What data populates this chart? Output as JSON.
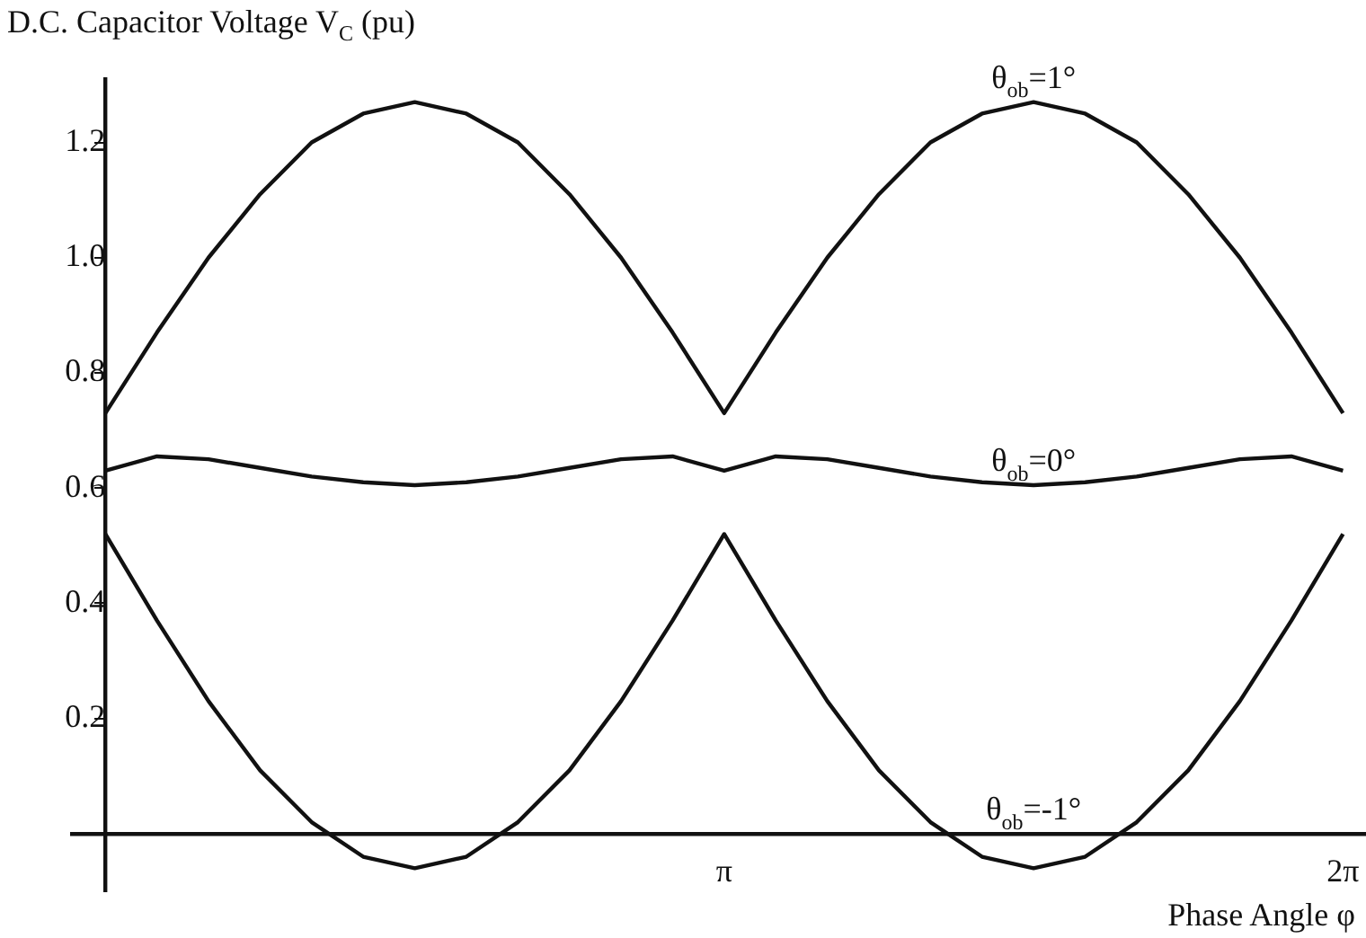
{
  "chart_data": {
    "type": "line",
    "ylabel": "D.C. Capacitor Voltage V$_{C}$ (pu)",
    "xlabel": "Phase Angle φ",
    "x": [
      0,
      0.2618,
      0.5236,
      0.7854,
      1.0472,
      1.309,
      1.5708,
      1.8326,
      2.0944,
      2.3562,
      2.618,
      2.8798,
      3.1416,
      3.4034,
      3.6652,
      3.927,
      4.1888,
      4.4506,
      4.7124,
      4.9742,
      5.236,
      5.4978,
      5.7596,
      6.0214,
      6.2832
    ],
    "series": [
      {
        "name": "θ$_{ob}$=1°",
        "color": "#111111",
        "values": [
          0.73,
          0.87,
          1.0,
          1.11,
          1.2,
          1.25,
          1.27,
          1.25,
          1.2,
          1.11,
          1.0,
          0.87,
          0.73,
          0.87,
          1.0,
          1.11,
          1.2,
          1.25,
          1.27,
          1.25,
          1.2,
          1.11,
          1.0,
          0.87,
          0.73
        ]
      },
      {
        "name": "θ$_{ob}$=0°",
        "color": "#111111",
        "values": [
          0.63,
          0.655,
          0.65,
          0.635,
          0.62,
          0.61,
          0.605,
          0.61,
          0.62,
          0.635,
          0.65,
          0.655,
          0.63,
          0.655,
          0.65,
          0.635,
          0.62,
          0.61,
          0.605,
          0.61,
          0.62,
          0.635,
          0.65,
          0.655,
          0.63
        ]
      },
      {
        "name": "θ$_{ob}$=-1°",
        "color": "#111111",
        "values": [
          0.52,
          0.37,
          0.23,
          0.11,
          0.02,
          -0.04,
          -0.06,
          -0.04,
          0.02,
          0.11,
          0.23,
          0.37,
          0.52,
          0.37,
          0.23,
          0.11,
          0.02,
          -0.04,
          -0.06,
          -0.04,
          0.02,
          0.11,
          0.23,
          0.37,
          0.52
        ]
      }
    ],
    "xlim": [
      -0.17,
      6.4
    ],
    "xticks": [
      {
        "value": 3.1416,
        "label": "π"
      },
      {
        "value": 6.2832,
        "label": "2π"
      }
    ],
    "ylim": [
      -0.1,
      1.31
    ],
    "yticks": [
      0.2,
      0.4,
      0.6,
      0.8,
      {
        "value": 1,
        "label": "1.0"
      },
      1.2
    ],
    "grid": false,
    "legend": false,
    "marker": "none",
    "line_style": "solid"
  }
}
